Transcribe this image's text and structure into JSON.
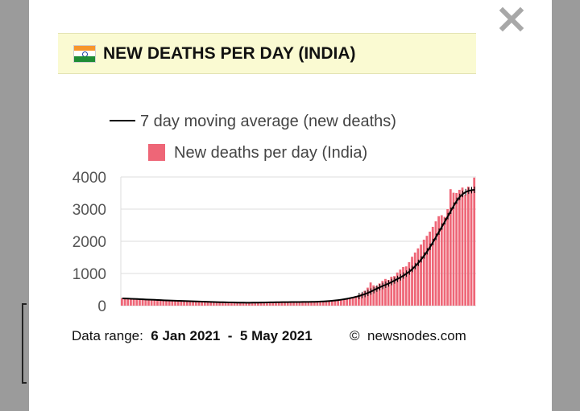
{
  "modal": {
    "close_label": "close",
    "title": "NEW DEATHS PER DAY (INDIA)",
    "flag_icon": "india-flag-icon"
  },
  "footer": {
    "range_label": "Data range:",
    "range_start": "6 Jan 2021",
    "range_separator": "-",
    "range_end": "5 May 2021",
    "credit_symbol": "©",
    "credit_text": "newsnodes.com"
  },
  "colors": {
    "bar": "#ee6677",
    "bar_edge": "#c94455",
    "line": "#000000",
    "title_bg": "#fafad2"
  },
  "chart_data": {
    "type": "bar",
    "title": "NEW DEATHS PER DAY (INDIA)",
    "xlabel": "",
    "ylabel": "",
    "ylim": [
      0,
      4000
    ],
    "yticks": [
      "0",
      "1000",
      "2000",
      "3000",
      "4000"
    ],
    "grid": true,
    "legend": [
      "7 day moving average (new deaths)",
      "New deaths per day (India)"
    ],
    "legend_position": "top",
    "date_range": [
      "6 Jan 2021",
      "5 May 2021"
    ],
    "series": [
      {
        "name": "New deaths per day (India)",
        "type": "bar",
        "values": [
          235,
          230,
          225,
          215,
          225,
          210,
          205,
          210,
          200,
          195,
          185,
          180,
          190,
          175,
          170,
          165,
          160,
          162,
          150,
          148,
          155,
          145,
          140,
          138,
          132,
          130,
          128,
          135,
          120,
          118,
          112,
          110,
          105,
          102,
          98,
          95,
          100,
          96,
          94,
          92,
          90,
          88,
          92,
          95,
          90,
          98,
          100,
          95,
          102,
          105,
          100,
          110,
          112,
          108,
          105,
          110,
          112,
          115,
          110,
          118,
          120,
          115,
          110,
          118,
          120,
          125,
          118,
          130,
          140,
          135,
          150,
          160,
          165,
          185,
          200,
          210,
          230,
          250,
          275,
          300,
          330,
          380,
          460,
          560,
          720,
          630,
          600,
          690,
          770,
          830,
          800,
          900,
          920,
          1030,
          1120,
          1200,
          1220,
          1350,
          1520,
          1650,
          1780,
          1900,
          2050,
          2170,
          2300,
          2450,
          2620,
          2780,
          2810,
          2760,
          3000,
          3620,
          3510,
          3500,
          3600,
          3670,
          3450,
          3700,
          3580,
          3980
        ],
        "note": "approx. daily values read off bar heights"
      },
      {
        "name": "7 day moving average (new deaths)",
        "type": "line",
        "values": [
          225,
          222,
          218,
          214,
          210,
          205,
          200,
          196,
          192,
          188,
          184,
          180,
          175,
          171,
          167,
          163,
          159,
          156,
          152,
          149,
          146,
          143,
          140,
          137,
          134,
          131,
          128,
          125,
          122,
          119,
          116,
          113,
          110,
          107,
          105,
          103,
          101,
          99,
          97,
          95,
          94,
          93,
          92,
          92,
          93,
          94,
          95,
          96,
          98,
          100,
          102,
          104,
          106,
          107,
          108,
          109,
          110,
          111,
          112,
          113,
          114,
          115,
          116,
          117,
          118,
          120,
          123,
          127,
          132,
          138,
          145,
          153,
          162,
          173,
          186,
          200,
          216,
          234,
          254,
          276,
          300,
          330,
          362,
          398,
          438,
          482,
          530,
          572,
          612,
          650,
          690,
          735,
          782,
          830,
          880,
          935,
          995,
          1060,
          1140,
          1230,
          1330,
          1440,
          1560,
          1690,
          1830,
          1980,
          2140,
          2300,
          2460,
          2620,
          2780,
          2950,
          3110,
          3260,
          3380,
          3470,
          3530,
          3570,
          3590,
          3600
        ]
      }
    ]
  }
}
